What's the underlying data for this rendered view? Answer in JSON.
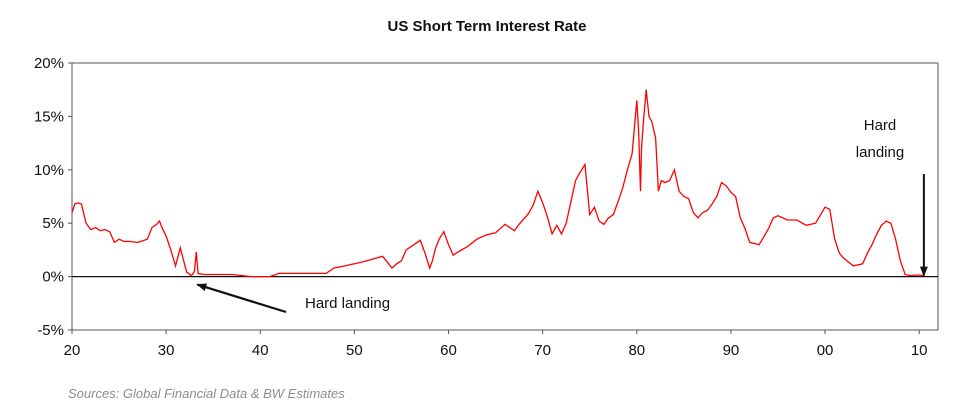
{
  "chart_data": {
    "type": "line",
    "title": "US Short Term Interest Rate",
    "xlabel": "",
    "ylabel": "",
    "x_tick_labels": [
      "20",
      "30",
      "40",
      "50",
      "60",
      "70",
      "80",
      "90",
      "00",
      "10"
    ],
    "x_ticks_years": [
      1920,
      1930,
      1940,
      1950,
      1960,
      1970,
      1980,
      1990,
      2000,
      2010
    ],
    "xlim": [
      1920,
      2012
    ],
    "y_tick_labels": [
      "20%",
      "15%",
      "10%",
      "5%",
      "0%",
      "-5%"
    ],
    "y_ticks": [
      20,
      15,
      10,
      5,
      0,
      -5
    ],
    "ylim": [
      -5,
      20
    ],
    "grid": false,
    "line_color": "#ff0000",
    "series": [
      {
        "x": [
          1920,
          1920.3,
          1920.6,
          1921,
          1921.5,
          1922,
          1922.5,
          1923,
          1923.5,
          1924,
          1924.5,
          1925,
          1925.5,
          1926,
          1927,
          1928,
          1928.5,
          1929,
          1929.3,
          1929.6,
          1930,
          1930.5,
          1931,
          1931.5,
          1932,
          1932.2,
          1932.4,
          1932.6,
          1932.8,
          1933,
          1933.2,
          1933.4,
          1934,
          1936,
          1937,
          1938,
          1939,
          1940,
          1941,
          1942,
          1944,
          1946,
          1947,
          1947.8,
          1949,
          1951,
          1953,
          1954,
          1954.5,
          1955,
          1955.5,
          1956,
          1957,
          1957.5,
          1958,
          1958.3,
          1958.6,
          1959,
          1959.5,
          1960,
          1960.5,
          1961,
          1962,
          1963,
          1964,
          1965,
          1966,
          1967,
          1967.5,
          1968,
          1968.5,
          1969,
          1969.5,
          1970,
          1970.5,
          1971,
          1971.5,
          1972,
          1972.5,
          1973,
          1973.5,
          1974,
          1974.5,
          1975,
          1975.5,
          1976,
          1976.5,
          1977,
          1977.5,
          1978,
          1978.5,
          1979,
          1979.5,
          1980,
          1980.2,
          1980.4,
          1980.5,
          1980.7,
          1981,
          1981.3,
          1981.6,
          1982,
          1982.3,
          1982.6,
          1983,
          1983.5,
          1984,
          1984.5,
          1985,
          1985.5,
          1986,
          1986.5,
          1987,
          1987.5,
          1988,
          1988.5,
          1989,
          1989.5,
          1990,
          1990.5,
          1991,
          1991.5,
          1992,
          1993,
          1994,
          1994.5,
          1995,
          1996,
          1997,
          1998,
          1999,
          2000,
          2000.5,
          2001,
          2001.5,
          2002,
          2003,
          2004,
          2004.5,
          2005,
          2005.5,
          2006,
          2006.5,
          2007,
          2007.5,
          2008,
          2008.5,
          2009,
          2010,
          2010.5
        ],
        "y": [
          6.0,
          6.8,
          6.9,
          6.8,
          5.0,
          4.4,
          4.6,
          4.3,
          4.4,
          4.2,
          3.2,
          3.5,
          3.3,
          3.3,
          3.2,
          3.5,
          4.6,
          4.9,
          5.2,
          4.5,
          3.8,
          2.5,
          1.0,
          2.7,
          1.0,
          0.4,
          0.3,
          0.1,
          0.2,
          0.5,
          2.3,
          0.3,
          0.2,
          0.2,
          0.2,
          0.1,
          0.0,
          0.0,
          0.0,
          0.3,
          0.3,
          0.3,
          0.3,
          0.8,
          1.0,
          1.4,
          1.9,
          0.8,
          1.2,
          1.5,
          2.5,
          2.8,
          3.4,
          2.2,
          0.8,
          1.5,
          2.6,
          3.5,
          4.2,
          3.0,
          2.0,
          2.3,
          2.8,
          3.5,
          3.9,
          4.1,
          4.9,
          4.3,
          4.9,
          5.4,
          5.9,
          6.7,
          8.0,
          6.9,
          5.6,
          4.0,
          4.8,
          4.0,
          5.0,
          7.0,
          9.0,
          9.8,
          10.5,
          5.8,
          6.5,
          5.2,
          4.9,
          5.5,
          5.8,
          7.0,
          8.3,
          10.0,
          11.5,
          16.5,
          13.5,
          8.0,
          12.0,
          14.5,
          17.5,
          15.0,
          14.5,
          13.0,
          8.0,
          9.0,
          8.8,
          9.0,
          10.0,
          8.0,
          7.5,
          7.3,
          6.0,
          5.5,
          6.0,
          6.2,
          6.8,
          7.5,
          8.8,
          8.5,
          7.9,
          7.5,
          5.5,
          4.5,
          3.2,
          3.0,
          4.5,
          5.5,
          5.7,
          5.3,
          5.3,
          4.8,
          5.0,
          6.5,
          6.3,
          3.6,
          2.2,
          1.7,
          1.0,
          1.2,
          2.2,
          3.0,
          4.0,
          4.8,
          5.2,
          5.0,
          3.5,
          1.5,
          0.2,
          0.1,
          0.15,
          0.1
        ]
      }
    ],
    "annotations": [
      {
        "text": "Hard landing",
        "arrow_to": {
          "x": 1933,
          "y": 0
        }
      },
      {
        "text_lines": [
          "Hard",
          "landing"
        ],
        "arrow_to": {
          "x": 2010.5,
          "y": 0
        }
      }
    ],
    "source_note": "Sources: Global Financial Data & BW Estimates"
  }
}
